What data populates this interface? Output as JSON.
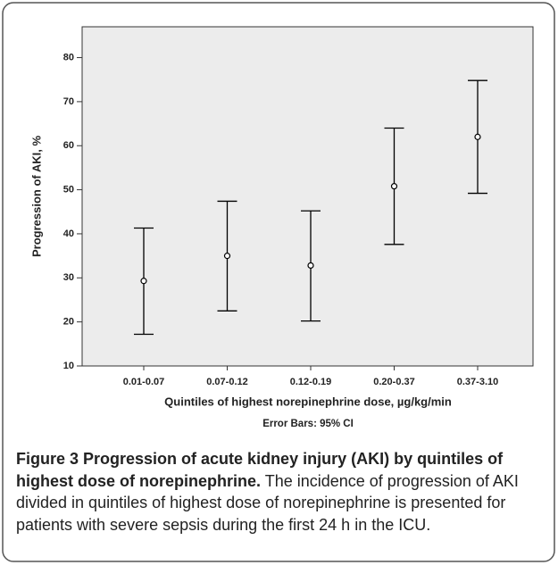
{
  "chart_data": {
    "type": "errorbar",
    "y_label": "Progression of AKI, %",
    "x_label": "Quintiles of highest norepinephrine dose, µg/kg/min",
    "note": "Error Bars: 95% CI",
    "categories": [
      "0.01-0.07",
      "0.07-0.12",
      "0.12-0.19",
      "0.20-0.37",
      "0.37-3.10"
    ],
    "values": [
      29.3,
      35.0,
      32.8,
      50.8,
      62.0
    ],
    "ci_lower": [
      17.2,
      22.5,
      20.2,
      37.6,
      49.2
    ],
    "ci_upper": [
      41.3,
      47.4,
      45.2,
      64.0,
      74.8
    ],
    "color": "#000000",
    "background": "#ececec",
    "ylim": [
      10,
      87
    ],
    "yticks": [
      10,
      20,
      30,
      40,
      50,
      60,
      70,
      80
    ]
  },
  "caption": {
    "title": "Figure 3 Progression of acute kidney injury (AKI) by quintiles of highest dose of norepinephrine.",
    "text": "The incidence of progression of AKI divided in quintiles of highest dose of norepinephrine is presented for patients with severe sepsis during the first 24 h in the ICU."
  }
}
